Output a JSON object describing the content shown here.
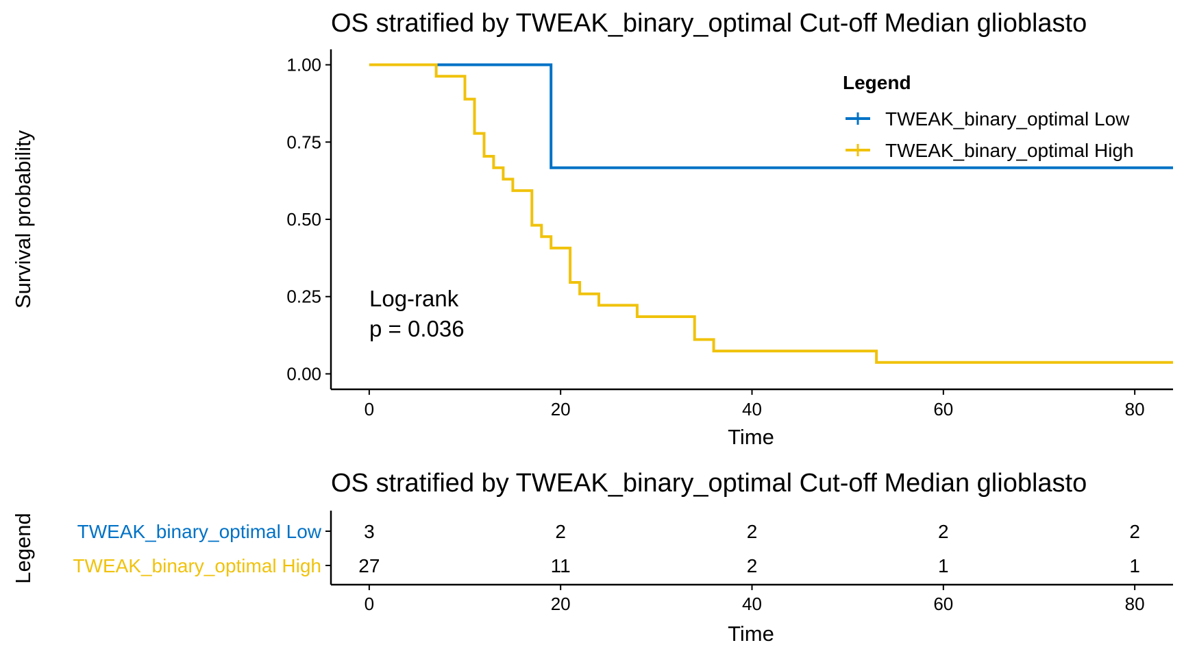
{
  "chart_data": [
    {
      "type": "line",
      "subtype": "kaplan-meier-step",
      "title": "OS stratified by TWEAK_binary_optimal Cut-off Median glioblasto",
      "xlabel": "Time",
      "ylabel": "Survival probability",
      "xlim": [
        -4,
        84
      ],
      "ylim": [
        -0.05,
        1.05
      ],
      "x_ticks": [
        0,
        20,
        40,
        60,
        80
      ],
      "y_ticks": [
        0.0,
        0.25,
        0.5,
        0.75,
        1.0
      ],
      "y_tick_labels": [
        "0.00",
        "0.25",
        "0.50",
        "0.75",
        "1.00"
      ],
      "grid": false,
      "legend_title": "Legend",
      "legend_position": "top-right",
      "annotation": [
        "Log-rank",
        "p = 0.036"
      ],
      "series": [
        {
          "name": "TWEAK_binary_optimal Low",
          "color": "#0072C6",
          "x": [
            0,
            19,
            19,
            84
          ],
          "y": [
            1.0,
            1.0,
            0.667,
            0.667
          ]
        },
        {
          "name": "TWEAK_binary_optimal High",
          "color": "#F0C20C",
          "x": [
            0,
            7,
            7,
            10,
            10,
            11,
            11,
            12,
            12,
            13,
            13,
            14,
            14,
            15,
            15,
            17,
            17,
            18,
            18,
            19,
            19,
            21,
            21,
            22,
            22,
            24,
            24,
            28,
            28,
            34,
            34,
            36,
            36,
            53,
            53,
            84
          ],
          "y": [
            1.0,
            1.0,
            0.963,
            0.963,
            0.889,
            0.889,
            0.778,
            0.778,
            0.704,
            0.704,
            0.667,
            0.667,
            0.63,
            0.63,
            0.593,
            0.593,
            0.481,
            0.481,
            0.444,
            0.444,
            0.407,
            0.407,
            0.296,
            0.296,
            0.259,
            0.259,
            0.222,
            0.222,
            0.185,
            0.185,
            0.111,
            0.111,
            0.074,
            0.074,
            0.037,
            0.037
          ]
        }
      ]
    },
    {
      "type": "table",
      "title": "OS stratified by TWEAK_binary_optimal Cut-off Median glioblasto",
      "xlabel": "Time",
      "ylabel": "Legend",
      "x_ticks": [
        0,
        20,
        40,
        60,
        80
      ],
      "rows": [
        {
          "name": "TWEAK_binary_optimal Low",
          "color": "#0072C6",
          "values": [
            3,
            2,
            2,
            2,
            2
          ]
        },
        {
          "name": "TWEAK_binary_optimal High",
          "color": "#F0C20C",
          "values": [
            27,
            11,
            2,
            1,
            1
          ]
        }
      ]
    }
  ]
}
